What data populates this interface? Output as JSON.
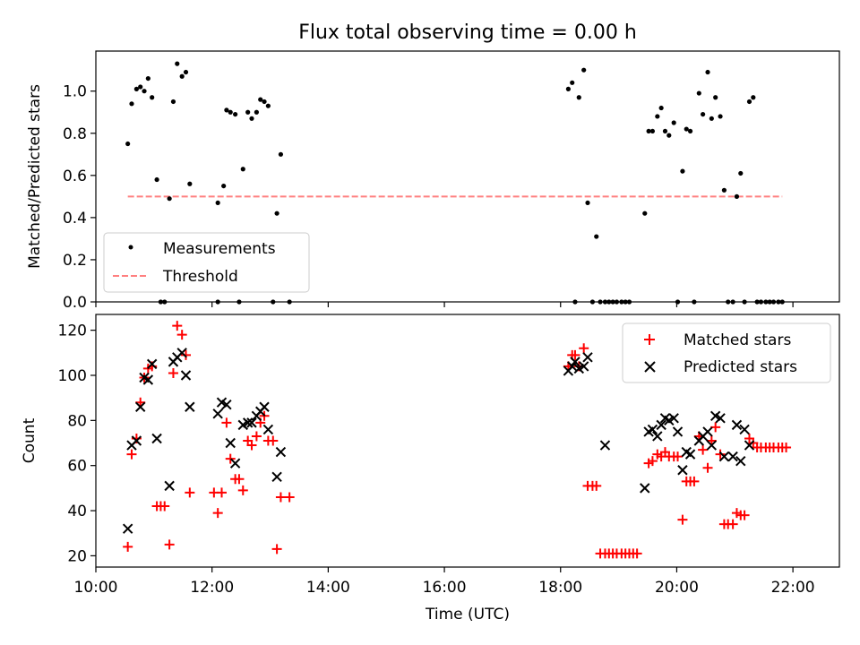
{
  "chart_data": [
    {
      "type": "scatter",
      "title": "Flux total observing time = 0.00 h",
      "xlabel": "",
      "ylabel": "Matched/Predicted stars",
      "xlim": [
        "10:00",
        "22:48"
      ],
      "ylim": [
        0,
        1.19
      ],
      "yticks": [
        0.0,
        0.2,
        0.4,
        0.6,
        0.8,
        1.0
      ],
      "yticklabels": [
        "0.0",
        "0.2",
        "0.4",
        "0.6",
        "0.8",
        "1.0"
      ],
      "legend": {
        "placement": "lower-left",
        "entries": [
          "Measurements",
          "Threshold"
        ]
      },
      "series": [
        {
          "name": "Measurements",
          "kind": "points",
          "color": "#000000",
          "points": [
            [
              "10:33",
              0.75
            ],
            [
              "10:37",
              0.94
            ],
            [
              "10:42",
              1.01
            ],
            [
              "10:46",
              1.02
            ],
            [
              "10:50",
              1.0
            ],
            [
              "10:54",
              1.06
            ],
            [
              "10:58",
              0.97
            ],
            [
              "11:03",
              0.58
            ],
            [
              "11:07",
              0.0
            ],
            [
              "11:11",
              0.0
            ],
            [
              "11:16",
              0.49
            ],
            [
              "11:20",
              0.95
            ],
            [
              "11:24",
              1.13
            ],
            [
              "11:29",
              1.07
            ],
            [
              "11:33",
              1.09
            ],
            [
              "11:37",
              0.56
            ],
            [
              "12:06",
              0.0
            ],
            [
              "12:06",
              0.47
            ],
            [
              "12:12",
              0.55
            ],
            [
              "12:15",
              0.91
            ],
            [
              "12:19",
              0.9
            ],
            [
              "12:24",
              0.89
            ],
            [
              "12:28",
              0.0
            ],
            [
              "12:32",
              0.63
            ],
            [
              "12:37",
              0.9
            ],
            [
              "12:41",
              0.87
            ],
            [
              "12:46",
              0.9
            ],
            [
              "12:50",
              0.96
            ],
            [
              "12:54",
              0.95
            ],
            [
              "12:58",
              0.93
            ],
            [
              "13:03",
              0.0
            ],
            [
              "13:07",
              0.42
            ],
            [
              "13:11",
              0.7
            ],
            [
              "13:20",
              0.0
            ],
            [
              "18:08",
              1.01
            ],
            [
              "18:12",
              1.04
            ],
            [
              "18:15",
              0.0
            ],
            [
              "18:19",
              0.97
            ],
            [
              "18:24",
              1.1
            ],
            [
              "18:28",
              0.47
            ],
            [
              "18:33",
              0.0
            ],
            [
              "18:37",
              0.31
            ],
            [
              "18:41",
              0.0
            ],
            [
              "18:46",
              0.0
            ],
            [
              "18:50",
              0.0
            ],
            [
              "18:54",
              0.0
            ],
            [
              "18:58",
              0.0
            ],
            [
              "19:03",
              0.0
            ],
            [
              "19:07",
              0.0
            ],
            [
              "19:11",
              0.0
            ],
            [
              "19:27",
              0.42
            ],
            [
              "19:31",
              0.81
            ],
            [
              "19:35",
              0.81
            ],
            [
              "19:40",
              0.88
            ],
            [
              "19:44",
              0.92
            ],
            [
              "19:48",
              0.81
            ],
            [
              "19:52",
              0.79
            ],
            [
              "19:57",
              0.85
            ],
            [
              "20:01",
              0.0
            ],
            [
              "20:06",
              0.62
            ],
            [
              "20:10",
              0.82
            ],
            [
              "20:14",
              0.81
            ],
            [
              "20:18",
              0.0
            ],
            [
              "20:23",
              0.99
            ],
            [
              "20:27",
              0.89
            ],
            [
              "20:32",
              1.09
            ],
            [
              "20:36",
              0.87
            ],
            [
              "20:40",
              0.97
            ],
            [
              "20:45",
              0.88
            ],
            [
              "20:49",
              0.53
            ],
            [
              "20:53",
              0.0
            ],
            [
              "20:58",
              0.0
            ],
            [
              "21:02",
              0.5
            ],
            [
              "21:06",
              0.61
            ],
            [
              "21:10",
              0.0
            ],
            [
              "21:15",
              0.95
            ],
            [
              "21:19",
              0.97
            ],
            [
              "21:23",
              0.0
            ],
            [
              "21:27",
              0.0
            ],
            [
              "21:32",
              0.0
            ],
            [
              "21:36",
              0.0
            ],
            [
              "21:40",
              0.0
            ],
            [
              "21:45",
              0.0
            ],
            [
              "21:49",
              0.0
            ]
          ]
        },
        {
          "name": "Threshold",
          "kind": "dashed-line",
          "color": "#ff8080",
          "x": [
            "10:33",
            "21:49"
          ],
          "values": [
            0.5,
            0.5
          ]
        }
      ]
    },
    {
      "type": "scatter",
      "title": "",
      "xlabel": "Time (UTC)",
      "ylabel": "Count",
      "xlim": [
        "10:00",
        "22:48"
      ],
      "ylim": [
        15,
        127
      ],
      "yticks": [
        20,
        40,
        60,
        80,
        100,
        120
      ],
      "yticklabels": [
        "20",
        "40",
        "60",
        "80",
        "100",
        "120"
      ],
      "xticks": [
        "10:00",
        "12:00",
        "14:00",
        "16:00",
        "18:00",
        "20:00",
        "22:00"
      ],
      "xticklabels": [
        "10:00",
        "12:00",
        "14:00",
        "16:00",
        "18:00",
        "20:00",
        "22:00"
      ],
      "legend": {
        "placement": "upper-right",
        "entries": [
          "Matched stars",
          "Predicted stars"
        ]
      },
      "series": [
        {
          "name": "Matched stars",
          "marker": "plus",
          "color": "#ff0000",
          "points": [
            [
              "10:33",
              24
            ],
            [
              "10:37",
              65
            ],
            [
              "10:42",
              72
            ],
            [
              "10:46",
              88
            ],
            [
              "10:50",
              99
            ],
            [
              "10:54",
              103
            ],
            [
              "10:58",
              104
            ],
            [
              "11:03",
              42
            ],
            [
              "11:07",
              42
            ],
            [
              "11:11",
              42
            ],
            [
              "11:16",
              25
            ],
            [
              "11:20",
              101
            ],
            [
              "11:24",
              122
            ],
            [
              "11:29",
              118
            ],
            [
              "11:33",
              109
            ],
            [
              "11:37",
              48
            ],
            [
              "12:02",
              48
            ],
            [
              "12:06",
              39
            ],
            [
              "12:10",
              48
            ],
            [
              "12:15",
              79
            ],
            [
              "12:19",
              63
            ],
            [
              "12:24",
              54
            ],
            [
              "12:28",
              54
            ],
            [
              "12:32",
              49
            ],
            [
              "12:37",
              71
            ],
            [
              "12:41",
              69
            ],
            [
              "12:46",
              73
            ],
            [
              "12:50",
              79
            ],
            [
              "12:54",
              82
            ],
            [
              "12:58",
              71
            ],
            [
              "13:03",
              71
            ],
            [
              "13:07",
              23
            ],
            [
              "13:11",
              46
            ],
            [
              "13:20",
              46
            ],
            [
              "18:08",
              104
            ],
            [
              "18:12",
              109
            ],
            [
              "18:15",
              109
            ],
            [
              "18:19",
              104
            ],
            [
              "18:24",
              112
            ],
            [
              "18:28",
              51
            ],
            [
              "18:33",
              51
            ],
            [
              "18:37",
              51
            ],
            [
              "18:41",
              21
            ],
            [
              "18:46",
              21
            ],
            [
              "18:50",
              21
            ],
            [
              "18:54",
              21
            ],
            [
              "18:58",
              21
            ],
            [
              "19:03",
              21
            ],
            [
              "19:07",
              21
            ],
            [
              "19:11",
              21
            ],
            [
              "19:15",
              21
            ],
            [
              "19:19",
              21
            ],
            [
              "19:31",
              61
            ],
            [
              "19:35",
              62
            ],
            [
              "19:40",
              65
            ],
            [
              "19:44",
              64
            ],
            [
              "19:48",
              66
            ],
            [
              "19:52",
              64
            ],
            [
              "19:57",
              64
            ],
            [
              "20:01",
              64
            ],
            [
              "20:06",
              36
            ],
            [
              "20:10",
              53
            ],
            [
              "20:14",
              53
            ],
            [
              "20:18",
              53
            ],
            [
              "20:23",
              73
            ],
            [
              "20:27",
              67
            ],
            [
              "20:32",
              59
            ],
            [
              "20:36",
              71
            ],
            [
              "20:40",
              77
            ],
            [
              "20:45",
              65
            ],
            [
              "20:49",
              34
            ],
            [
              "20:53",
              34
            ],
            [
              "20:58",
              34
            ],
            [
              "21:02",
              39
            ],
            [
              "21:06",
              38
            ],
            [
              "21:10",
              38
            ],
            [
              "21:15",
              72
            ],
            [
              "21:19",
              70
            ],
            [
              "21:23",
              68
            ],
            [
              "21:27",
              68
            ],
            [
              "21:32",
              68
            ],
            [
              "21:36",
              68
            ],
            [
              "21:40",
              68
            ],
            [
              "21:45",
              68
            ],
            [
              "21:49",
              68
            ],
            [
              "21:53",
              68
            ]
          ]
        },
        {
          "name": "Predicted stars",
          "marker": "x",
          "color": "#000000",
          "points": [
            [
              "10:33",
              32
            ],
            [
              "10:37",
              69
            ],
            [
              "10:42",
              71
            ],
            [
              "10:46",
              86
            ],
            [
              "10:50",
              99
            ],
            [
              "10:54",
              98
            ],
            [
              "10:58",
              105
            ],
            [
              "11:03",
              72
            ],
            [
              "11:16",
              51
            ],
            [
              "11:20",
              106
            ],
            [
              "11:24",
              108
            ],
            [
              "11:29",
              110
            ],
            [
              "11:33",
              100
            ],
            [
              "11:37",
              86
            ],
            [
              "12:06",
              83
            ],
            [
              "12:10",
              88
            ],
            [
              "12:15",
              87
            ],
            [
              "12:19",
              70
            ],
            [
              "12:24",
              61
            ],
            [
              "12:32",
              78
            ],
            [
              "12:37",
              79
            ],
            [
              "12:41",
              79
            ],
            [
              "12:46",
              82
            ],
            [
              "12:50",
              84
            ],
            [
              "12:54",
              86
            ],
            [
              "12:58",
              76
            ],
            [
              "13:07",
              55
            ],
            [
              "13:11",
              66
            ],
            [
              "18:08",
              102
            ],
            [
              "18:12",
              104
            ],
            [
              "18:15",
              106
            ],
            [
              "18:19",
              103
            ],
            [
              "18:24",
              104
            ],
            [
              "18:28",
              108
            ],
            [
              "18:46",
              69
            ],
            [
              "19:27",
              50
            ],
            [
              "19:31",
              75
            ],
            [
              "19:35",
              76
            ],
            [
              "19:40",
              73
            ],
            [
              "19:44",
              78
            ],
            [
              "19:48",
              81
            ],
            [
              "19:52",
              80
            ],
            [
              "19:57",
              81
            ],
            [
              "20:01",
              75
            ],
            [
              "20:06",
              58
            ],
            [
              "20:10",
              66
            ],
            [
              "20:14",
              65
            ],
            [
              "20:23",
              71
            ],
            [
              "20:27",
              73
            ],
            [
              "20:32",
              75
            ],
            [
              "20:36",
              69
            ],
            [
              "20:40",
              82
            ],
            [
              "20:45",
              81
            ],
            [
              "20:49",
              64
            ],
            [
              "20:58",
              64
            ],
            [
              "21:02",
              78
            ],
            [
              "21:06",
              62
            ],
            [
              "21:10",
              76
            ],
            [
              "21:15",
              69
            ]
          ]
        }
      ]
    }
  ]
}
